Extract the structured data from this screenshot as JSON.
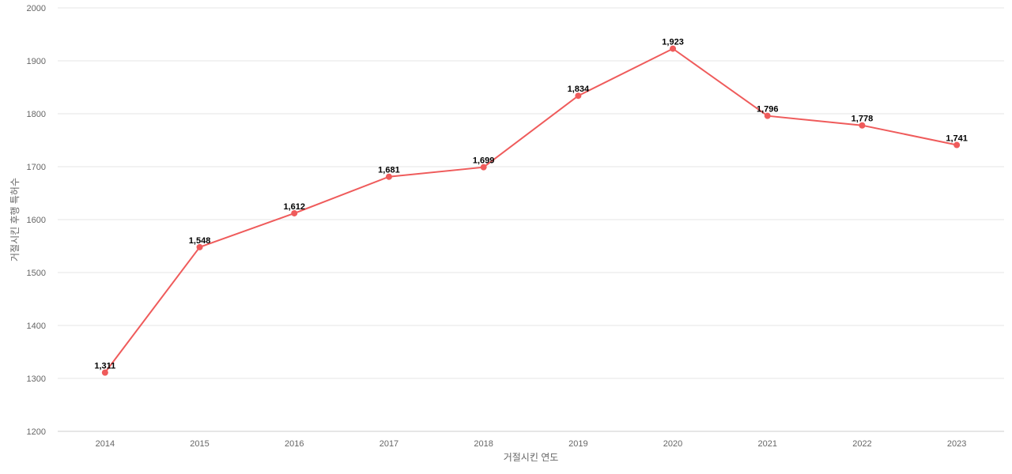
{
  "chart_data": {
    "type": "line",
    "title": "",
    "xlabel": "거절시킨 연도",
    "ylabel": "거절시킨 후행 특허수",
    "categories": [
      "2014",
      "2015",
      "2016",
      "2017",
      "2018",
      "2019",
      "2020",
      "2021",
      "2022",
      "2023"
    ],
    "series": [
      {
        "values": [
          1311,
          1548,
          1612,
          1681,
          1699,
          1834,
          1923,
          1796,
          1778,
          1741
        ],
        "labels": [
          "1,311",
          "1,548",
          "1,612",
          "1,681",
          "1,699",
          "1,834",
          "1,923",
          "1,796",
          "1,778",
          "1,741"
        ],
        "color": "#ef5b5b"
      }
    ],
    "ylim": [
      1200,
      2000
    ],
    "yticks": [
      "1200",
      "1300",
      "1400",
      "1500",
      "1600",
      "1700",
      "1800",
      "1900",
      "2000"
    ],
    "grid": true,
    "gridColor": "#e5e5e5",
    "axisColor": "#cccccc"
  }
}
